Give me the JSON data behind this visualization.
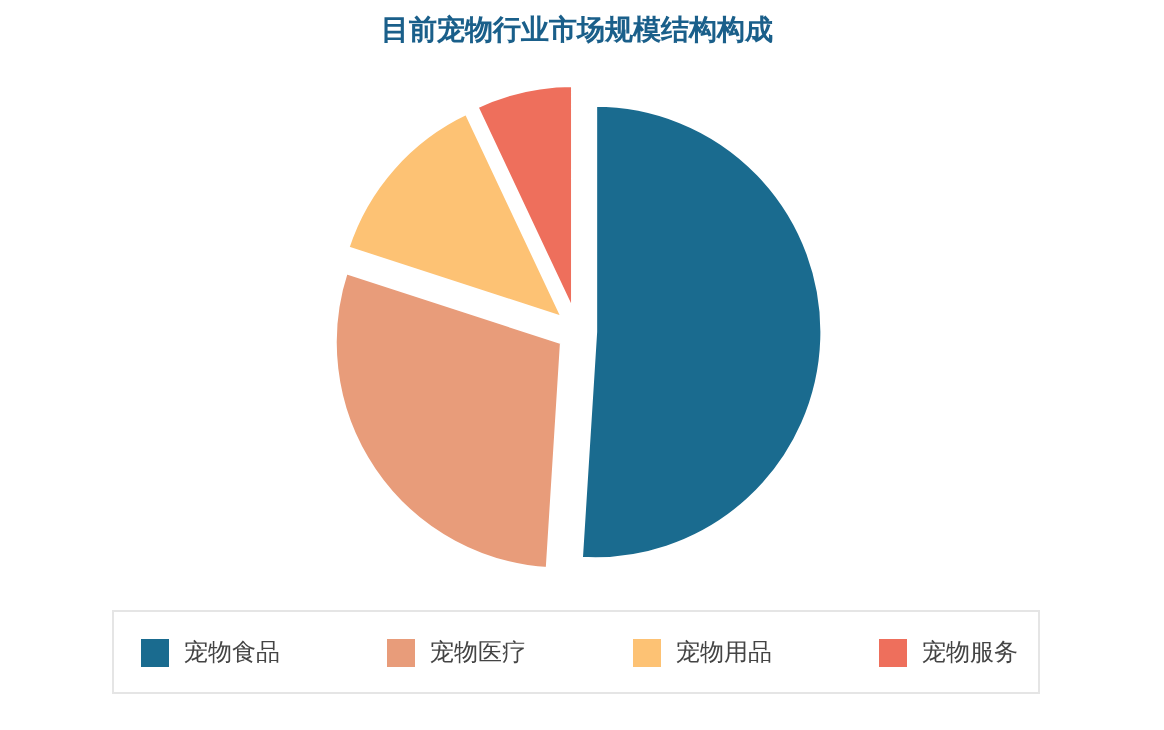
{
  "chart_data": {
    "type": "pie",
    "title": "目前宠物行业市场规模结构构成",
    "categories": [
      "宠物食品",
      "宠物医疗",
      "宠物用品",
      "宠物服务"
    ],
    "values": [
      51,
      29,
      13,
      7
    ],
    "colors": [
      "#1a6b8f",
      "#e89c7a",
      "#fdc274",
      "#ee6f5c"
    ],
    "legend": "bottom"
  }
}
